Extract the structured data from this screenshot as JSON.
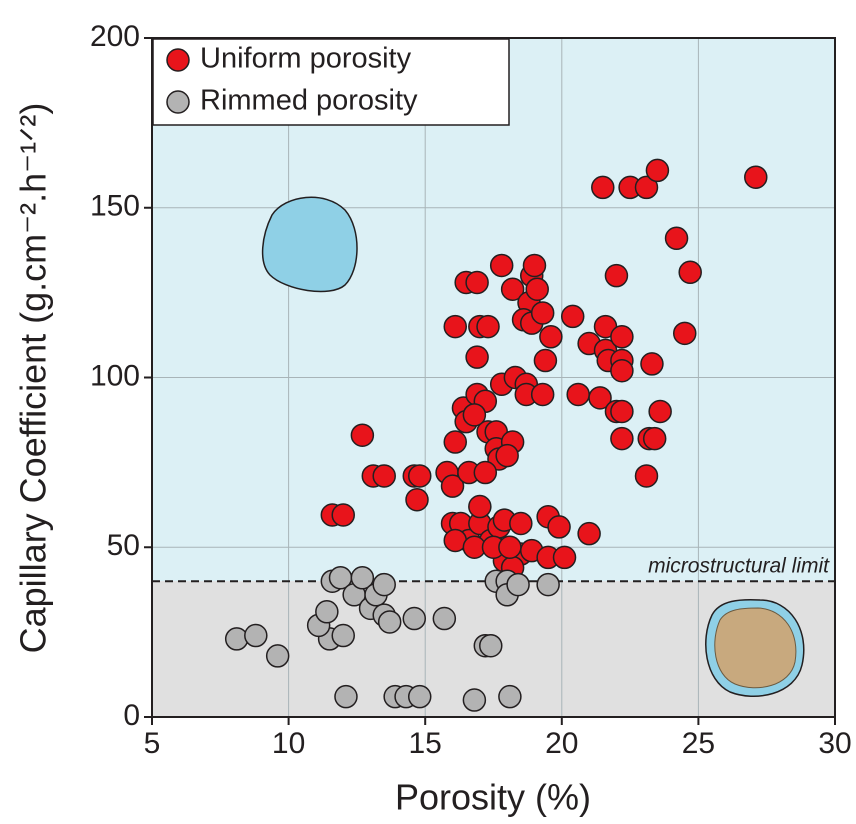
{
  "chart_data": {
    "type": "scatter",
    "xlabel": "Porosity (%)",
    "ylabel": "Capillary Coefficient (g.cm⁻².h⁻¹ᐟ²)",
    "xlim": [
      5,
      30
    ],
    "ylim": [
      0,
      200
    ],
    "xticks": [
      5,
      10,
      15,
      20,
      25,
      30
    ],
    "yticks": [
      0,
      50,
      100,
      150,
      200
    ],
    "grid": true,
    "legend": "upper left",
    "limit": {
      "value": 40,
      "label": "microstructural limit"
    },
    "series": [
      {
        "name": "Uniform porosity",
        "color": "#e8141b",
        "x": [
          12.7,
          11.6,
          12.0,
          13.1,
          13.5,
          14.6,
          14.8,
          14.7,
          15.8,
          16.0,
          16.1,
          16.4,
          16.5,
          16.6,
          16.1,
          17.0,
          17.3,
          16.5,
          16.9,
          16.9,
          16.9,
          17.2,
          17.3,
          17.6,
          17.6,
          17.7,
          17.2,
          16.8,
          17.8,
          17.8,
          18.2,
          18.3,
          18.2,
          18.0,
          18.7,
          18.7,
          19.3,
          18.8,
          18.9,
          19.0,
          19.1,
          18.6,
          18.9,
          19.3,
          19.4,
          19.6,
          20.4,
          20.6,
          21.0,
          21.4,
          21.6,
          21.6,
          21.7,
          21.5,
          22.0,
          22.2,
          22.0,
          22.2,
          22.2,
          22.2,
          22.2,
          22.5,
          23.1,
          23.5,
          23.1,
          23.2,
          23.4,
          23.3,
          23.6,
          24.2,
          24.5,
          24.7,
          27.1,
          16.0,
          16.3,
          16.6,
          17.0,
          17.4,
          17.7,
          17.9,
          18.5,
          18.5,
          18.9,
          19.5,
          19.5,
          19.9,
          20.1,
          21.0,
          16.1,
          17.0,
          16.8,
          17.9,
          18.2,
          17.5,
          18.1
        ],
        "values": [
          83,
          59.5,
          59.5,
          71,
          71,
          71,
          71,
          64,
          72,
          68,
          81,
          91,
          87,
          72,
          115,
          115,
          115,
          128,
          128,
          106,
          95,
          93,
          84,
          84,
          79,
          76,
          72,
          89,
          98,
          133,
          126,
          100,
          81,
          77,
          98,
          95,
          95,
          122,
          130,
          133,
          126,
          117,
          116,
          119,
          105,
          112,
          118,
          95,
          110,
          94,
          115,
          108,
          105,
          156,
          90,
          90,
          130,
          112,
          105,
          102,
          82,
          156,
          156,
          161,
          71,
          82,
          82,
          104,
          90,
          141,
          113,
          131,
          159,
          57,
          57,
          52,
          57,
          52,
          56,
          58,
          57,
          48,
          49,
          59,
          47,
          56,
          47,
          54,
          52,
          62,
          50,
          46,
          44,
          50,
          50
        ]
      },
      {
        "name": "Rimmed porosity",
        "color": "#b3b3b3",
        "x": [
          8.1,
          8.8,
          9.6,
          11.5,
          11.1,
          11.4,
          11.6,
          11.9,
          12.0,
          12.4,
          12.7,
          13.0,
          13.2,
          13.5,
          13.5,
          13.7,
          14.6,
          15.7,
          12.1,
          13.9,
          14.3,
          14.8,
          16.8,
          18.1,
          17.2,
          17.4,
          17.6,
          18.0,
          18.0,
          18.4,
          19.5
        ],
        "values": [
          23,
          24,
          18,
          23,
          27,
          31,
          40,
          41,
          24,
          36,
          41,
          32,
          36,
          39,
          30,
          28,
          29,
          29,
          6,
          6,
          6,
          6,
          5,
          6,
          21,
          21,
          40,
          40,
          36,
          39,
          39
        ]
      }
    ]
  }
}
